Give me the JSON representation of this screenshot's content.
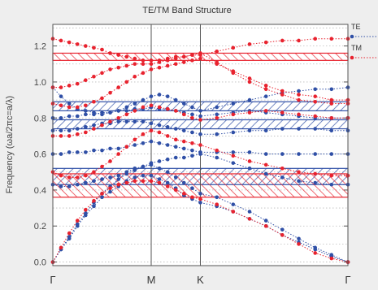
{
  "chart_data": {
    "type": "scatter",
    "title": "TE/TM Band Structure",
    "xlabel": "",
    "ylabel": "Frequency (ωa/2πc=a/λ)",
    "xlim": [
      0,
      3
    ],
    "ylim": [
      -0.02,
      1.32
    ],
    "grid": "horizontal dotted",
    "legend_position": "right, outside plot",
    "x_ticks": [
      {
        "pos": 0,
        "label": "Γ"
      },
      {
        "pos": 1,
        "label": "M"
      },
      {
        "pos": 1.5,
        "label": "K"
      },
      {
        "pos": 3,
        "label": "Γ"
      }
    ],
    "y_ticks": [
      0.0,
      0.2,
      0.4,
      0.6,
      0.8,
      1.0,
      1.2
    ],
    "k_points": [
      0,
      0.083,
      0.167,
      0.25,
      0.333,
      0.417,
      0.5,
      0.583,
      0.667,
      0.75,
      0.833,
      0.917,
      1.0,
      1.083,
      1.167,
      1.25,
      1.333,
      1.417,
      1.5,
      1.667,
      1.833,
      2.0,
      2.167,
      2.333,
      2.5,
      2.667,
      2.833,
      3.0
    ],
    "series": [
      {
        "name": "TE",
        "color": "#2f4fa6",
        "bands": [
          [
            0.0,
            0.07,
            0.13,
            0.2,
            0.26,
            0.31,
            0.36,
            0.39,
            0.42,
            0.45,
            0.47,
            0.48,
            0.48,
            0.46,
            0.44,
            0.41,
            0.37,
            0.35,
            0.33,
            0.31,
            0.28,
            0.24,
            0.2,
            0.15,
            0.11,
            0.07,
            0.03,
            0.0
          ],
          [
            0.0,
            0.07,
            0.14,
            0.21,
            0.27,
            0.33,
            0.38,
            0.42,
            0.46,
            0.49,
            0.51,
            0.53,
            0.54,
            0.52,
            0.5,
            0.47,
            0.44,
            0.41,
            0.38,
            0.36,
            0.32,
            0.28,
            0.23,
            0.18,
            0.13,
            0.08,
            0.04,
            0.0
          ],
          [
            0.43,
            0.42,
            0.42,
            0.43,
            0.44,
            0.45,
            0.46,
            0.47,
            0.48,
            0.5,
            0.52,
            0.53,
            0.55,
            0.56,
            0.57,
            0.58,
            0.58,
            0.59,
            0.6,
            0.58,
            0.55,
            0.52,
            0.49,
            0.47,
            0.45,
            0.44,
            0.43,
            0.43
          ],
          [
            0.6,
            0.6,
            0.61,
            0.61,
            0.61,
            0.62,
            0.62,
            0.63,
            0.63,
            0.64,
            0.65,
            0.66,
            0.67,
            0.66,
            0.65,
            0.64,
            0.63,
            0.62,
            0.61,
            0.61,
            0.61,
            0.61,
            0.6,
            0.6,
            0.6,
            0.6,
            0.6,
            0.6
          ],
          [
            0.73,
            0.73,
            0.73,
            0.74,
            0.75,
            0.76,
            0.77,
            0.77,
            0.78,
            0.78,
            0.78,
            0.78,
            0.77,
            0.76,
            0.75,
            0.74,
            0.73,
            0.72,
            0.71,
            0.71,
            0.72,
            0.73,
            0.73,
            0.74,
            0.74,
            0.74,
            0.73,
            0.73
          ],
          [
            0.8,
            0.8,
            0.81,
            0.81,
            0.82,
            0.82,
            0.83,
            0.83,
            0.84,
            0.84,
            0.85,
            0.85,
            0.86,
            0.85,
            0.85,
            0.84,
            0.83,
            0.82,
            0.81,
            0.82,
            0.83,
            0.84,
            0.83,
            0.82,
            0.81,
            0.8,
            0.8,
            0.8
          ],
          [
            0.97,
            0.92,
            0.88,
            0.85,
            0.84,
            0.83,
            0.82,
            0.83,
            0.84,
            0.86,
            0.88,
            0.9,
            0.92,
            0.93,
            0.92,
            0.9,
            0.88,
            0.86,
            0.84,
            0.86,
            0.88,
            0.9,
            0.92,
            0.94,
            0.95,
            0.96,
            0.96,
            0.97
          ]
        ]
      },
      {
        "name": "TM",
        "color": "#e8222e",
        "bands": [
          [
            0.0,
            0.08,
            0.16,
            0.23,
            0.29,
            0.34,
            0.38,
            0.41,
            0.43,
            0.44,
            0.45,
            0.45,
            0.45,
            0.44,
            0.42,
            0.4,
            0.38,
            0.36,
            0.35,
            0.32,
            0.28,
            0.24,
            0.2,
            0.15,
            0.1,
            0.05,
            0.02,
            0.0
          ],
          [
            0.5,
            0.48,
            0.47,
            0.47,
            0.48,
            0.5,
            0.53,
            0.56,
            0.6,
            0.64,
            0.68,
            0.71,
            0.73,
            0.72,
            0.7,
            0.68,
            0.67,
            0.66,
            0.65,
            0.62,
            0.59,
            0.56,
            0.54,
            0.52,
            0.5,
            0.49,
            0.48,
            0.48
          ],
          [
            0.7,
            0.7,
            0.7,
            0.71,
            0.72,
            0.74,
            0.76,
            0.78,
            0.8,
            0.82,
            0.84,
            0.86,
            0.87,
            0.86,
            0.85,
            0.84,
            0.82,
            0.8,
            0.79,
            0.8,
            0.82,
            0.83,
            0.84,
            0.83,
            0.82,
            0.81,
            0.8,
            0.8
          ],
          [
            0.88,
            0.87,
            0.86,
            0.86,
            0.87,
            0.89,
            0.91,
            0.94,
            0.97,
            1.0,
            1.03,
            1.05,
            1.07,
            1.08,
            1.09,
            1.1,
            1.11,
            1.12,
            1.13,
            1.1,
            1.06,
            1.02,
            0.98,
            0.95,
            0.93,
            0.92,
            0.9,
            0.9
          ],
          [
            0.97,
            0.97,
            0.98,
            0.99,
            1.01,
            1.03,
            1.05,
            1.07,
            1.08,
            1.09,
            1.1,
            1.1,
            1.1,
            1.11,
            1.12,
            1.13,
            1.14,
            1.15,
            1.16,
            1.11,
            1.05,
            1.0,
            0.96,
            0.93,
            0.9,
            0.89,
            0.88,
            0.88
          ],
          [
            1.24,
            1.23,
            1.22,
            1.21,
            1.2,
            1.19,
            1.18,
            1.16,
            1.15,
            1.14,
            1.13,
            1.12,
            1.12,
            1.12,
            1.13,
            1.14,
            1.14,
            1.15,
            1.15,
            1.17,
            1.19,
            1.21,
            1.22,
            1.23,
            1.23,
            1.24,
            1.24,
            1.24
          ]
        ]
      }
    ],
    "band_gaps": [
      {
        "series": "TE",
        "range": [
          0.43,
          0.52
        ]
      },
      {
        "series": "TE",
        "range": [
          0.74,
          0.79
        ]
      },
      {
        "series": "TE",
        "range": [
          0.84,
          0.89
        ]
      },
      {
        "series": "TM",
        "range": [
          0.36,
          0.49
        ]
      },
      {
        "series": "TM",
        "range": [
          1.12,
          1.16
        ]
      }
    ]
  }
}
